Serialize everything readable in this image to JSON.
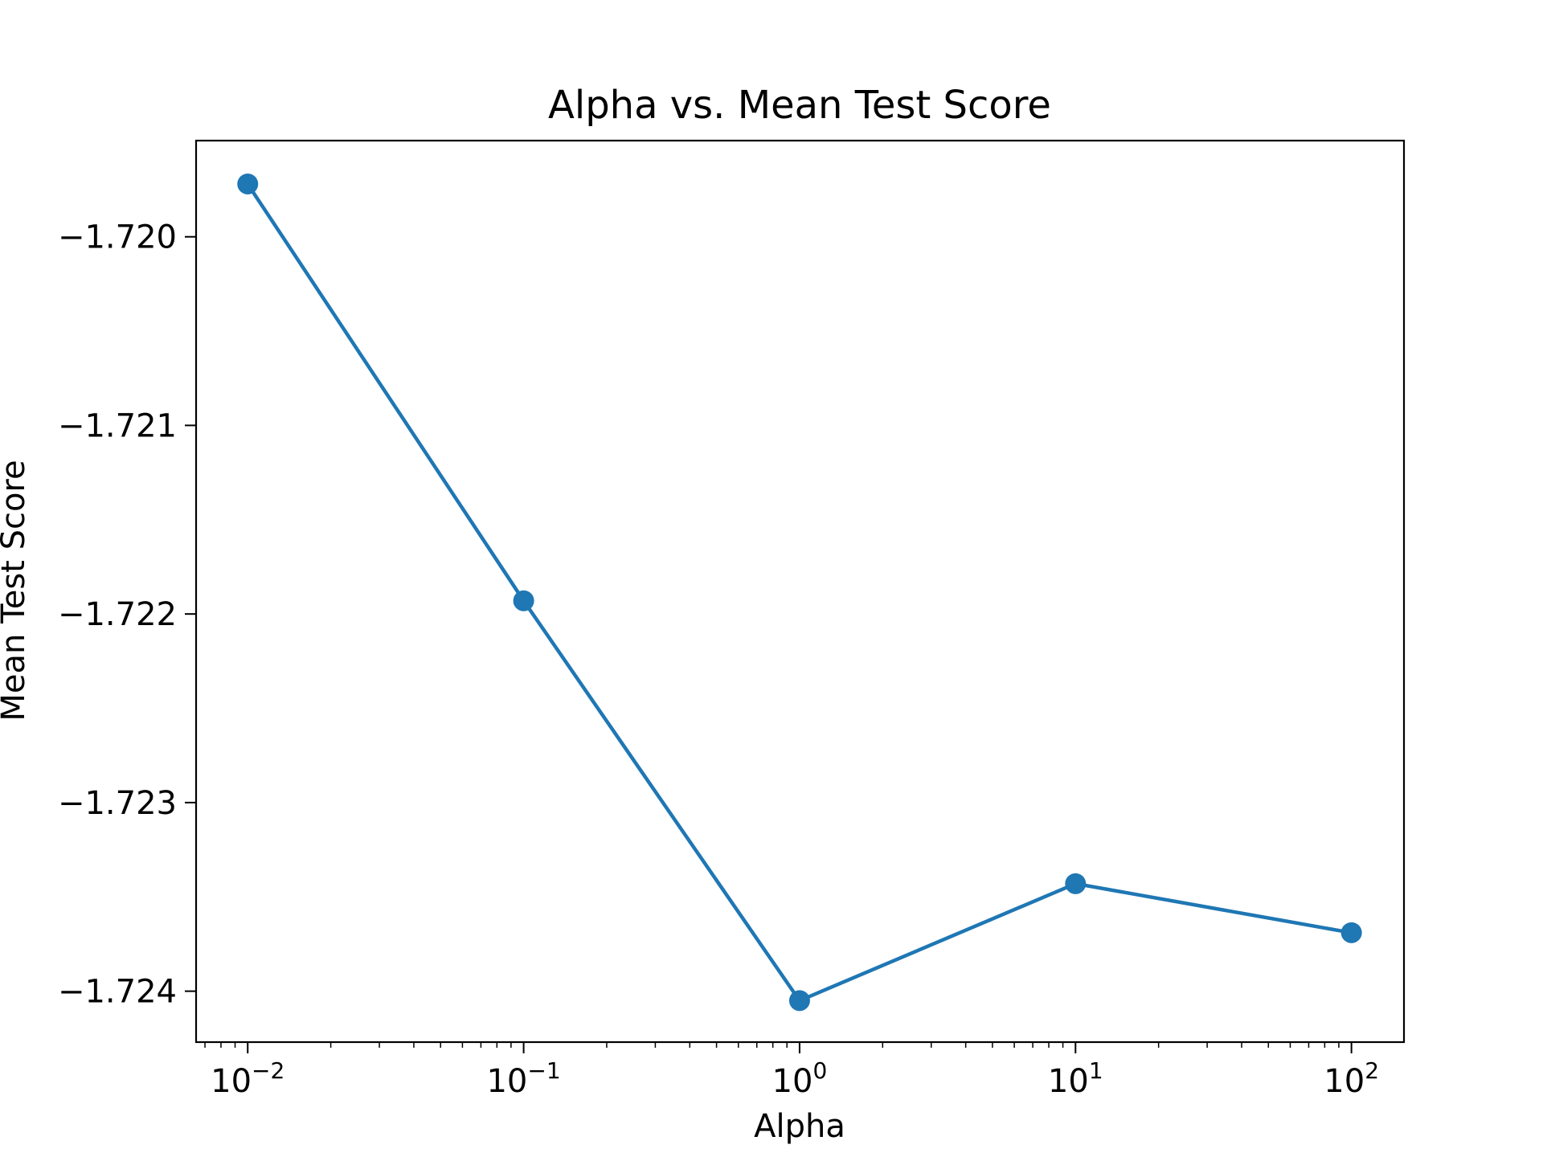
{
  "chart_data": {
    "type": "line",
    "title": "Alpha vs. Mean Test Score",
    "xlabel": "Alpha",
    "ylabel": "Mean Test Score",
    "x_scale": "log",
    "x": [
      0.01,
      0.1,
      1,
      10,
      100
    ],
    "series": [
      {
        "values": [
          -1.71972,
          -1.72193,
          -1.72405,
          -1.72343,
          -1.72369
        ]
      }
    ],
    "xlim": [
      0.0065,
      155
    ],
    "ylim": [
      -1.72427,
      -1.71949
    ],
    "x_ticks": [
      {
        "value": 0.01,
        "base": "10",
        "exp": "−2"
      },
      {
        "value": 0.1,
        "base": "10",
        "exp": "−1"
      },
      {
        "value": 1,
        "base": "10",
        "exp": "0"
      },
      {
        "value": 10,
        "base": "10",
        "exp": "1"
      },
      {
        "value": 100,
        "base": "10",
        "exp": "2"
      }
    ],
    "y_ticks": [
      {
        "value": -1.72,
        "label": "−1.720"
      },
      {
        "value": -1.721,
        "label": "−1.721"
      },
      {
        "value": -1.722,
        "label": "−1.722"
      },
      {
        "value": -1.723,
        "label": "−1.723"
      },
      {
        "value": -1.724,
        "label": "−1.724"
      }
    ],
    "grid": false,
    "line_color": "#1f77b4",
    "marker": "circle"
  }
}
